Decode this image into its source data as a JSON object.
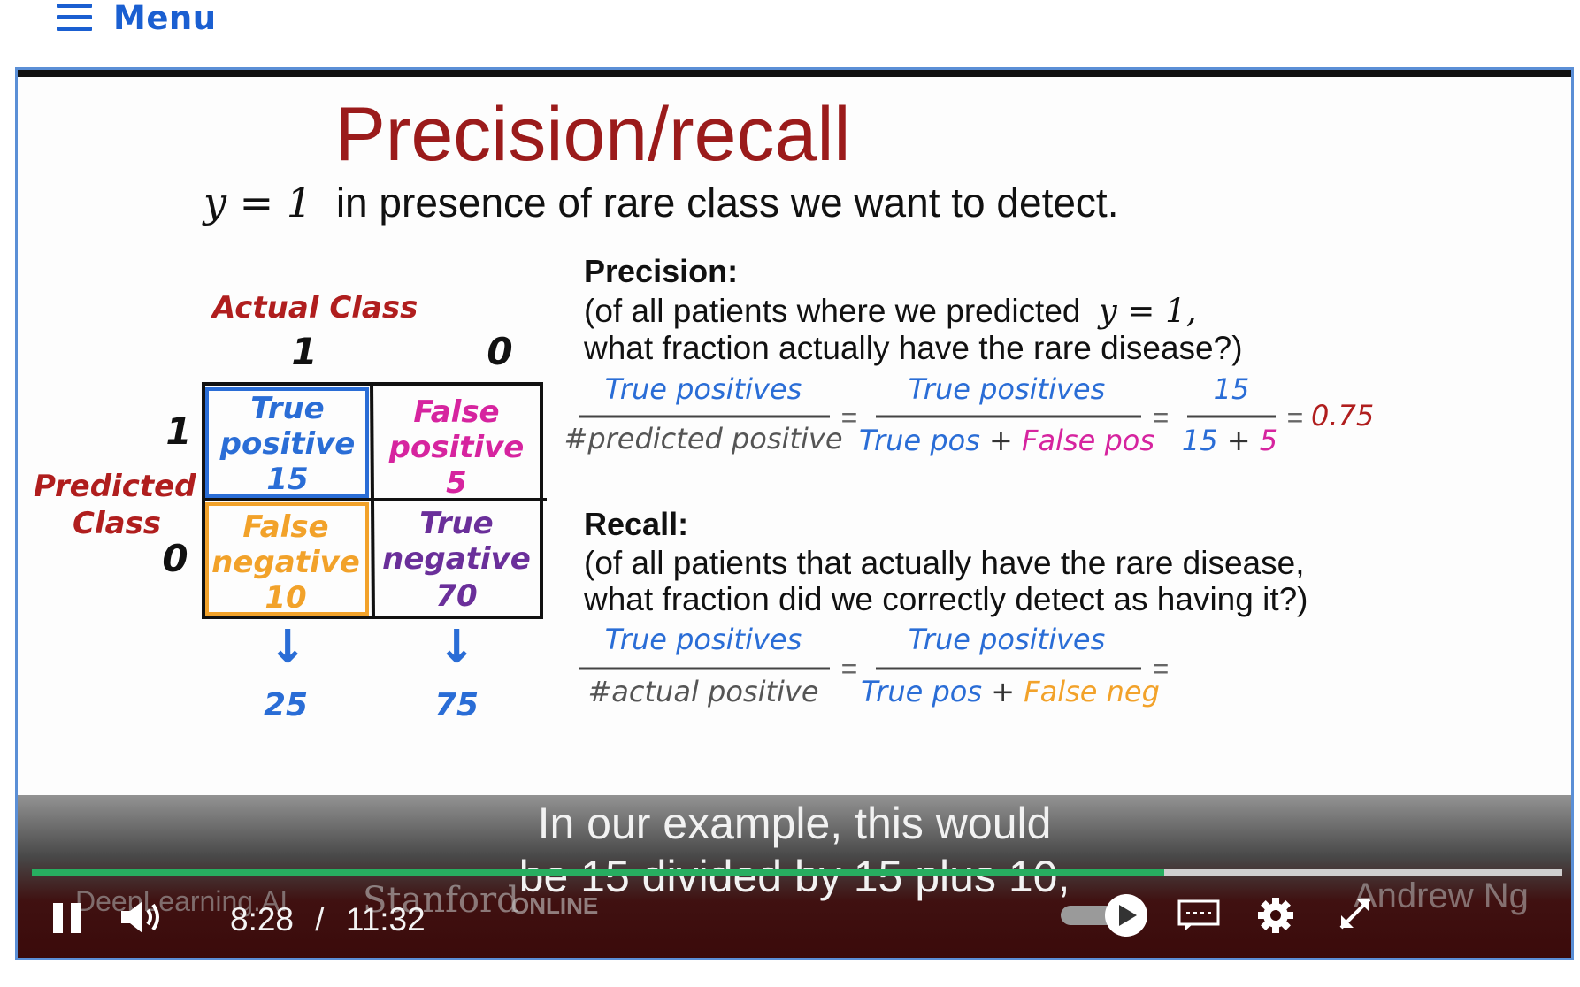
{
  "menu": {
    "label": "Menu"
  },
  "slide": {
    "title": "Precision/recall",
    "subtitle_math": "y = 1",
    "subtitle_text": "in presence of rare class we want to detect.",
    "matrix": {
      "actual_label": "Actual Class",
      "predicted_label_1": "Predicted",
      "predicted_label_2": "Class",
      "col_1": "1",
      "col_0": "0",
      "row_1": "1",
      "row_0": "0",
      "tp": {
        "line1": "True",
        "line2": "positive",
        "value": "15"
      },
      "fp": {
        "line1": "False",
        "line2": "positive",
        "value": "5"
      },
      "fn": {
        "line1": "False",
        "line2": "negative",
        "value": "10"
      },
      "tn": {
        "line1": "True",
        "line2": "negative",
        "value": "70"
      },
      "arrow": "↓",
      "sum_col_1": "25",
      "sum_col_0": "75"
    },
    "precision": {
      "heading": "Precision:",
      "desc_1a": "(of all patients where we predicted",
      "desc_1b": "y = 1,",
      "desc_2": "what fraction actually have the rare disease?)",
      "f1_num": "True positives",
      "f1_den": "#predicted positive",
      "f2_num": "True positives",
      "f2_den_a": "True pos",
      "plus": "+",
      "f2_den_b": "False pos",
      "f3_num": "15",
      "f3_den_a": "15",
      "f3_den_b": "5",
      "eq": "=",
      "result": "0.75"
    },
    "recall": {
      "heading": "Recall:",
      "desc_1": "(of all patients that actually have the rare disease,",
      "desc_2": "what fraction did we correctly detect as having it?)",
      "f1_num": "True positives",
      "f1_den": "#actual positive",
      "f2_num": "True positives",
      "f2_den_a": "True pos",
      "plus": "+",
      "f2_den_b": "False neg",
      "eq": "="
    }
  },
  "player": {
    "caption_line1": "In our example, this would",
    "caption_line2": "be 15 divided by 15 plus 10,",
    "current_time": "8:28",
    "time_sep": "/",
    "duration": "11:32",
    "progress": 0.74,
    "brand_deeplearning": "DeepLearning.AI",
    "brand_stanford": "Stanford",
    "brand_online": "ONLINE",
    "brand_andrew": "Andrew Ng"
  },
  "colors": {
    "menu_blue": "#1a5fd1",
    "title_red": "#9b1b1b",
    "blue": "#2a6dd6",
    "magenta": "#d6249f",
    "orange": "#f2a22a",
    "purple": "#6a2f9a",
    "progress_green": "#27ae60"
  },
  "icons": [
    "hamburger-icon",
    "pause-icon",
    "volume-icon",
    "play-speed-icon",
    "captions-icon",
    "gear-icon",
    "fullscreen-icon"
  ]
}
